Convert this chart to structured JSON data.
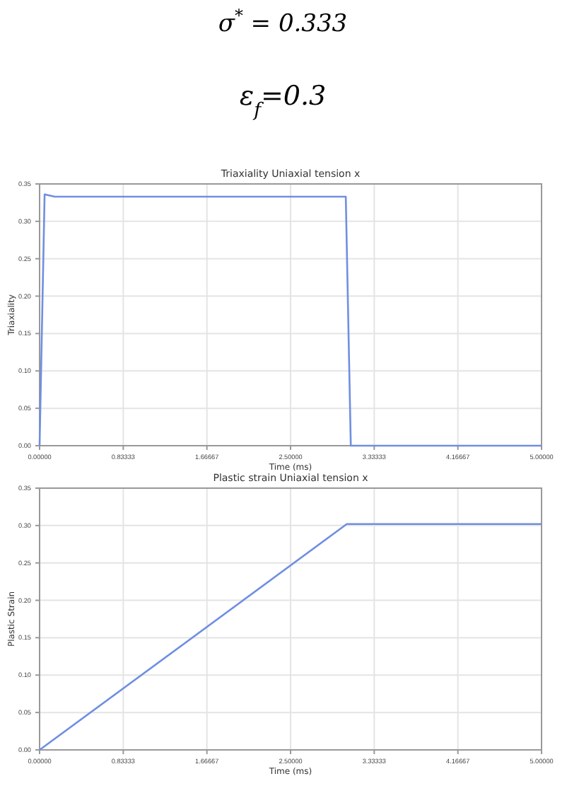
{
  "chart_data": [
    {
      "type": "line",
      "title": "Triaxiality Uniaxial tension x",
      "xlabel": "Time (ms)",
      "ylabel": "Triaxiality",
      "annotations": [
        "σ$^{*}$ = 0.333",
        "ε$_{f}$=0.3"
      ],
      "series": [
        {
          "color": "#6f8fe0",
          "x": [
            0,
            0.05,
            0.15,
            3.05,
            3.1,
            5
          ],
          "values": [
            0,
            0.336,
            0.333,
            0.333,
            0,
            0
          ]
        }
      ],
      "xlim": [
        0,
        5
      ],
      "ylim": [
        0,
        0.35
      ],
      "xticks": [
        {
          "value": 0,
          "label": "0.00000"
        },
        {
          "value": 0.83333,
          "label": "0.83333"
        },
        {
          "value": 1.66667,
          "label": "1.66667"
        },
        {
          "value": 2.5,
          "label": "2.50000"
        },
        {
          "value": 3.33333,
          "label": "3.33333"
        },
        {
          "value": 4.16667,
          "label": "4.16667"
        },
        {
          "value": 5,
          "label": "5.00000"
        }
      ],
      "yticks": [
        {
          "value": 0,
          "label": "0.00"
        },
        {
          "value": 0.05,
          "label": "0.05"
        },
        {
          "value": 0.1,
          "label": "0.10"
        },
        {
          "value": 0.15,
          "label": "0.15"
        },
        {
          "value": 0.2,
          "label": "0.20"
        },
        {
          "value": 0.25,
          "label": "0.25"
        },
        {
          "value": 0.3,
          "label": "0.30"
        },
        {
          "value": 0.35,
          "label": "0.35"
        }
      ],
      "grid": true,
      "marker": "none",
      "line_style": "solid"
    },
    {
      "type": "line",
      "title": "Plastic strain Uniaxial tension x",
      "xlabel": "Time (ms)",
      "ylabel": "Plastic Strain",
      "series": [
        {
          "color": "#6f8fe0",
          "x": [
            0,
            3.06,
            5
          ],
          "values": [
            0,
            0.302,
            0.302
          ]
        }
      ],
      "xlim": [
        0,
        5
      ],
      "ylim": [
        0,
        0.35
      ],
      "xticks": [
        {
          "value": 0,
          "label": "0.00000"
        },
        {
          "value": 0.83333,
          "label": "0.83333"
        },
        {
          "value": 1.66667,
          "label": "1.66667"
        },
        {
          "value": 2.5,
          "label": "2.50000"
        },
        {
          "value": 3.33333,
          "label": "3.33333"
        },
        {
          "value": 4.16667,
          "label": "4.16667"
        },
        {
          "value": 5,
          "label": "5.00000"
        }
      ],
      "yticks": [
        {
          "value": 0,
          "label": "0.00"
        },
        {
          "value": 0.05,
          "label": "0.05"
        },
        {
          "value": 0.1,
          "label": "0.10"
        },
        {
          "value": 0.15,
          "label": "0.15"
        },
        {
          "value": 0.2,
          "label": "0.20"
        },
        {
          "value": 0.25,
          "label": "0.25"
        },
        {
          "value": 0.3,
          "label": "0.30"
        },
        {
          "value": 0.35,
          "label": "0.35"
        }
      ],
      "grid": true,
      "marker": "none",
      "line_style": "solid"
    }
  ]
}
